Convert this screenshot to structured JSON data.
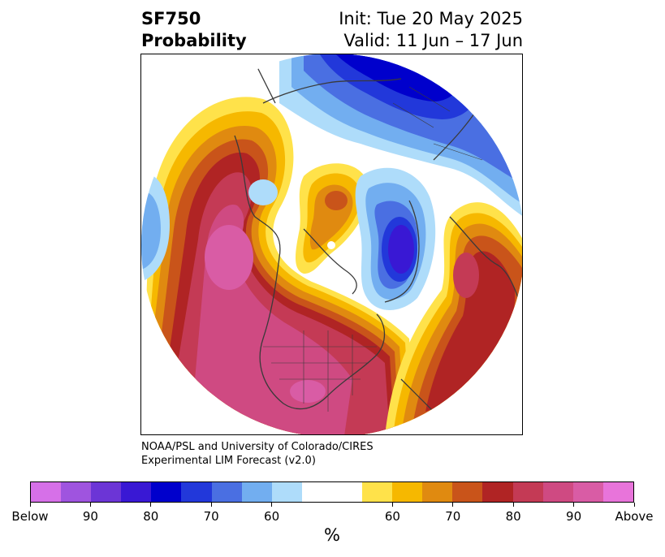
{
  "header": {
    "title_line1": "SF750",
    "title_line2": "Probability",
    "init": "Init: Tue 20 May 2025",
    "valid": "Valid: 11 Jun – 17 Jun"
  },
  "credit": {
    "line1": "NOAA/PSL and University of Colorado/CIRES",
    "line2": "Experimental LIM Forecast (v2.0)"
  },
  "colorbar": {
    "colors": [
      "#d670e8",
      "#9f54df",
      "#6c35d6",
      "#3918d4",
      "#0000cc",
      "#2238da",
      "#4a6fe2",
      "#72aef0",
      "#aedcfa",
      "#ffffff",
      "#ffffff",
      "#ffe24a",
      "#f6b800",
      "#e08a10",
      "#c9541a",
      "#b02424",
      "#c43a55",
      "#cf4a82",
      "#d95ca5",
      "#e874da"
    ],
    "tick_labels": [
      "Below",
      "90",
      "80",
      "70",
      "60",
      "60",
      "70",
      "80",
      "90",
      "Above"
    ],
    "unit": "%"
  }
}
